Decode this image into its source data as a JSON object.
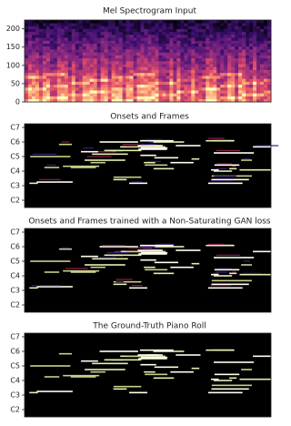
{
  "chart_data": [
    {
      "type": "heatmap",
      "title": "Mel Spectrogram Input",
      "ylim": [
        0,
        224
      ],
      "yticks": [
        0,
        50,
        100,
        150,
        200
      ]
    },
    {
      "type": "pianoroll",
      "title": "Onsets and Frames",
      "ylim": [
        30,
        99
      ],
      "yticks": [
        {
          "value": 36,
          "label": "C2"
        },
        {
          "value": 48,
          "label": "C3"
        },
        {
          "value": 60,
          "label": "C4"
        },
        {
          "value": 72,
          "label": "C5"
        },
        {
          "value": 84,
          "label": "C6"
        },
        {
          "value": 96,
          "label": "C7"
        }
      ]
    },
    {
      "type": "pianoroll",
      "title": "Onsets and Frames trained with a Non-Saturating GAN loss",
      "ylim": [
        30,
        99
      ],
      "yticks": [
        {
          "value": 36,
          "label": "C2"
        },
        {
          "value": 48,
          "label": "C3"
        },
        {
          "value": 60,
          "label": "C4"
        },
        {
          "value": 72,
          "label": "C5"
        },
        {
          "value": 84,
          "label": "C6"
        },
        {
          "value": 96,
          "label": "C7"
        }
      ]
    },
    {
      "type": "pianoroll",
      "title": "The Ground-Truth Piano Roll",
      "ylim": [
        30,
        99
      ],
      "yticks": [
        {
          "value": 36,
          "label": "C2"
        },
        {
          "value": 48,
          "label": "C3"
        },
        {
          "value": 60,
          "label": "C4"
        },
        {
          "value": 72,
          "label": "C5"
        },
        {
          "value": 84,
          "label": "C6"
        },
        {
          "value": 96,
          "label": "C7"
        }
      ]
    }
  ]
}
